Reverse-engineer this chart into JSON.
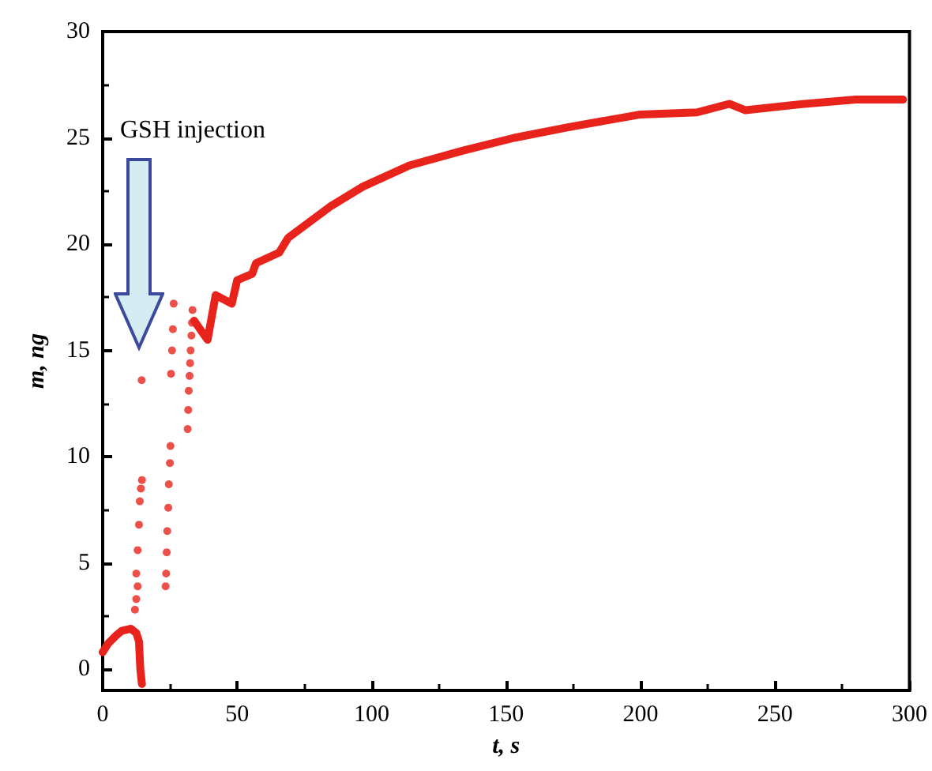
{
  "chart_data": {
    "type": "line",
    "xlabel": "t, s",
    "ylabel": "m, ng",
    "annotations": [
      "GSH injection"
    ],
    "series": [
      {
        "color": "#e8231c",
        "x": [
          0,
          2,
          4.7,
          7,
          10.5,
          12.5,
          13.5,
          14,
          14.6
        ],
        "values": [
          0.8,
          1.2,
          1.55,
          1.8,
          1.9,
          1.7,
          1.3,
          0.0,
          -0.7
        ]
      },
      {
        "type": "scatter",
        "marker": "circle",
        "color": "#e8231c",
        "x": [
          12,
          12.5,
          13,
          12.5,
          13,
          13.5,
          13.8,
          14.2,
          14.6,
          14.5,
          23.4,
          23.6,
          23.8,
          24,
          24.4,
          24.6,
          25,
          25.2,
          25.4,
          25.8,
          26.1,
          26.4,
          31.6,
          31.8,
          32,
          32.3,
          32.5,
          32.7,
          33,
          33.2,
          33.4
        ],
        "values": [
          2.8,
          3.3,
          3.9,
          4.5,
          5.6,
          6.8,
          7.9,
          8.5,
          8.9,
          13.6,
          3.9,
          4.5,
          5.5,
          6.5,
          7.6,
          8.7,
          9.7,
          10.5,
          13.9,
          15.0,
          16.0,
          17.2,
          11.3,
          12.2,
          13.1,
          13.8,
          14.4,
          15.0,
          15.7,
          16.3,
          16.9
        ]
      },
      {
        "color": "#e8231c",
        "x": [
          34,
          39,
          42,
          48,
          50,
          55.6,
          57,
          65.6,
          69,
          85,
          96.7,
          114,
          134,
          153,
          173,
          200,
          221,
          233,
          239,
          261,
          280,
          297.6
        ],
        "values": [
          16.4,
          15.5,
          17.6,
          17.2,
          18.3,
          18.6,
          19.1,
          19.6,
          20.3,
          21.8,
          22.7,
          23.7,
          24.4,
          25.0,
          25.5,
          26.1,
          26.2,
          26.6,
          26.3,
          26.6,
          26.8,
          26.8
        ]
      }
    ],
    "xlim": [
      0,
      300
    ],
    "xticks": [
      0,
      50,
      100,
      150,
      200,
      250,
      300
    ],
    "ylim": [
      -1,
      30
    ],
    "yticks": [
      0,
      5,
      10,
      15,
      20,
      25,
      30
    ],
    "grid": false
  }
}
